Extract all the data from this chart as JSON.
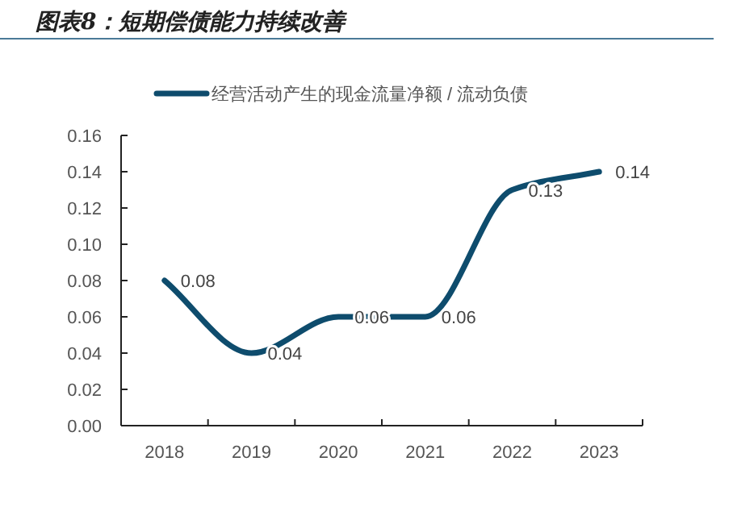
{
  "chart_data": {
    "type": "line",
    "title": "图表8：短期偿债能力持续改善",
    "categories": [
      "2018",
      "2019",
      "2020",
      "2021",
      "2022",
      "2023"
    ],
    "series": [
      {
        "name": "经营活动产生的现金流量净额 / 流动负债",
        "color": "#0e4c6d",
        "values": [
          0.08,
          0.04,
          0.06,
          0.06,
          0.13,
          0.14
        ]
      }
    ],
    "ylim": [
      0,
      0.16
    ],
    "yticks": [
      {
        "value": 0,
        "label": "0.00"
      },
      {
        "value": 0.02,
        "label": "0.02"
      },
      {
        "value": 0.04,
        "label": "0.04"
      },
      {
        "value": 0.06,
        "label": "0.06"
      },
      {
        "value": 0.08,
        "label": "0.08"
      },
      {
        "value": 0.1,
        "label": "0.10"
      },
      {
        "value": 0.12,
        "label": "0.12"
      },
      {
        "value": 0.14,
        "label": "0.14"
      },
      {
        "value": 0.16,
        "label": "0.16"
      }
    ],
    "data_labels": true,
    "legend": "top",
    "grid": false,
    "marker": "none",
    "line_style": "solid"
  }
}
